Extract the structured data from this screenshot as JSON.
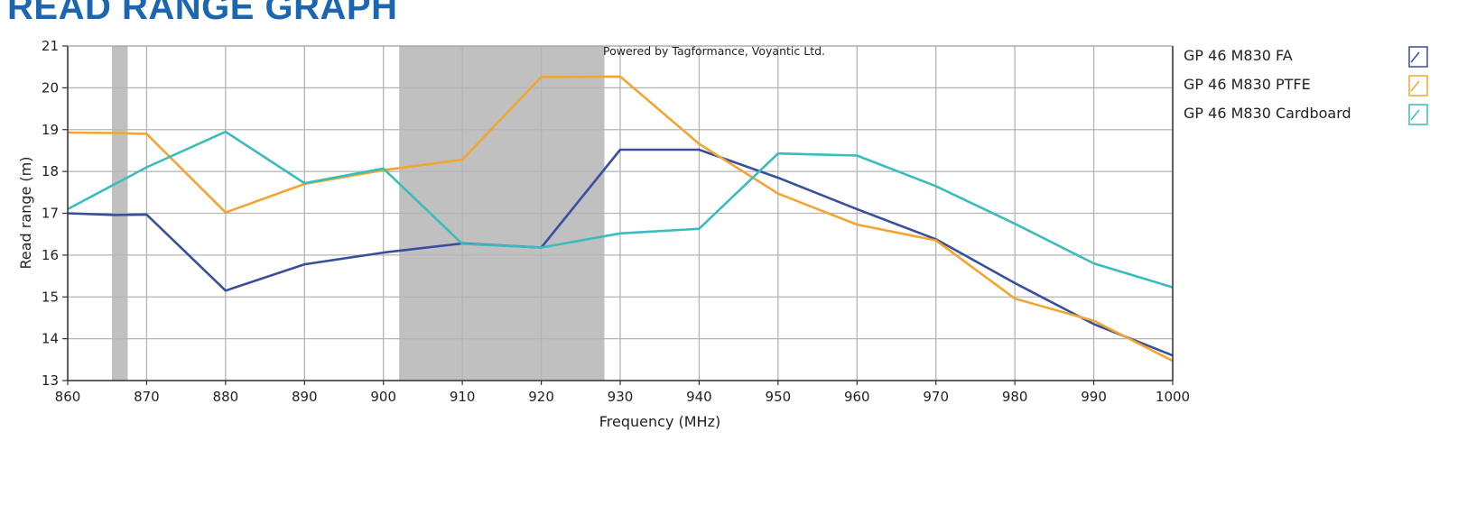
{
  "page": {
    "title": "READ RANGE GRAPH"
  },
  "chart_data": {
    "type": "line",
    "title": "",
    "xlabel": "Frequency (MHz)",
    "ylabel": "Read range (m)",
    "xlim": [
      860,
      1000
    ],
    "ylim": [
      13,
      21
    ],
    "x_ticks": [
      860,
      870,
      880,
      890,
      900,
      910,
      920,
      930,
      940,
      950,
      960,
      970,
      980,
      990,
      1000
    ],
    "y_ticks": [
      13,
      14,
      15,
      16,
      17,
      18,
      19,
      20,
      21
    ],
    "grid": true,
    "annotation": "Powered by Tagformance, Voyantic Ltd.",
    "shaded_bands": [
      {
        "x_start": 865.6,
        "x_end": 867.6
      },
      {
        "x_start": 902,
        "x_end": 928
      }
    ],
    "legend_position": "right",
    "series": [
      {
        "name": "GP 46 M830 FA",
        "color": "#3a4f9c",
        "x": [
          860,
          866,
          870,
          880,
          890,
          900,
          910,
          920,
          930,
          940,
          950,
          960,
          970,
          980,
          990,
          1000
        ],
        "y": [
          17.0,
          16.96,
          16.97,
          15.15,
          15.78,
          16.06,
          16.28,
          16.18,
          18.52,
          18.52,
          17.85,
          17.1,
          16.38,
          15.33,
          14.35,
          13.6
        ]
      },
      {
        "name": "GP 46 M830 PTFE",
        "color": "#f2a531",
        "x": [
          860,
          866,
          870,
          880,
          890,
          900,
          910,
          920,
          930,
          940,
          950,
          960,
          970,
          980,
          990,
          1000
        ],
        "y": [
          18.93,
          18.92,
          18.9,
          17.02,
          17.7,
          18.03,
          18.28,
          20.26,
          20.27,
          18.66,
          17.47,
          16.73,
          16.35,
          14.96,
          14.43,
          13.47
        ]
      },
      {
        "name": "GP 46 M830 Cardboard",
        "color": "#3bbcbc",
        "x": [
          860,
          870,
          880,
          890,
          900,
          910,
          920,
          930,
          940,
          950,
          960,
          970,
          980,
          990,
          1000
        ],
        "y": [
          17.1,
          18.1,
          18.95,
          17.72,
          18.07,
          16.27,
          16.18,
          16.52,
          16.63,
          18.43,
          18.38,
          17.65,
          16.75,
          15.8,
          15.23
        ]
      }
    ]
  }
}
